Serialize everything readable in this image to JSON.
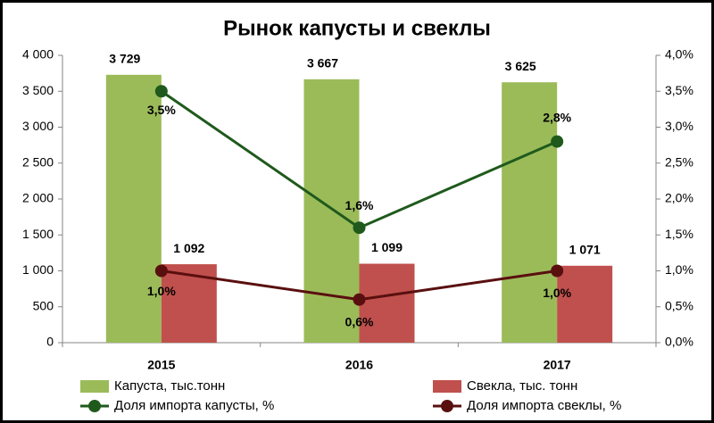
{
  "chart_data": {
    "type": "bar",
    "title": "Рынок капусты и свеклы",
    "categories": [
      "2015",
      "2016",
      "2017"
    ],
    "series": [
      {
        "name": "Капуста, тыс.тонн",
        "type": "bar",
        "color": "#9bbb59",
        "values": [
          3729,
          3667,
          3625
        ],
        "value_labels": [
          "3 729",
          "3 667",
          "3 625"
        ]
      },
      {
        "name": "Свекла, тыс. тонн",
        "type": "bar",
        "color": "#c0504d",
        "values": [
          1092,
          1099,
          1071
        ],
        "value_labels": [
          "1 092",
          "1 099",
          "1 071"
        ]
      },
      {
        "name": "Доля импорта капусты, %",
        "type": "line",
        "axis": "y2",
        "color": "#1f5a1c",
        "values": [
          3.5,
          1.6,
          2.8
        ],
        "value_labels": [
          "3,5%",
          "1,6%",
          "2,8%"
        ]
      },
      {
        "name": "Доля импорта свеклы, %",
        "type": "line",
        "axis": "y2",
        "color": "#5a0f0f",
        "values": [
          1.0,
          0.6,
          1.0
        ],
        "value_labels": [
          "1,0%",
          "0,6%",
          "1,0%"
        ]
      }
    ],
    "ylim": [
      0,
      4000
    ],
    "yticks": [
      0,
      {
        "value": 500,
        "label": "500"
      },
      {
        "value": 1000,
        "label": "1 000"
      },
      {
        "value": 1500,
        "label": "1 500"
      },
      {
        "value": 2000,
        "label": "2 000"
      },
      {
        "value": 2500,
        "label": "2 500"
      },
      {
        "value": 3000,
        "label": "3 000"
      },
      {
        "value": 3500,
        "label": "3 500"
      },
      {
        "value": 4000,
        "label": "4 000"
      }
    ],
    "y2lim": [
      0,
      4
    ],
    "y2ticks": [
      {
        "value": 0,
        "label": "0,0%"
      },
      {
        "value": 0.5,
        "label": "0,5%"
      },
      {
        "value": 1,
        "label": "1,0%"
      },
      {
        "value": 1.5,
        "label": "1,5%"
      },
      {
        "value": 2,
        "label": "2,0%"
      },
      {
        "value": 2.5,
        "label": "2,5%"
      },
      {
        "value": 3,
        "label": "3,0%"
      },
      {
        "value": 3.5,
        "label": "3,5%"
      },
      {
        "value": 4,
        "label": "4,0%"
      }
    ],
    "legend": "bottom"
  }
}
